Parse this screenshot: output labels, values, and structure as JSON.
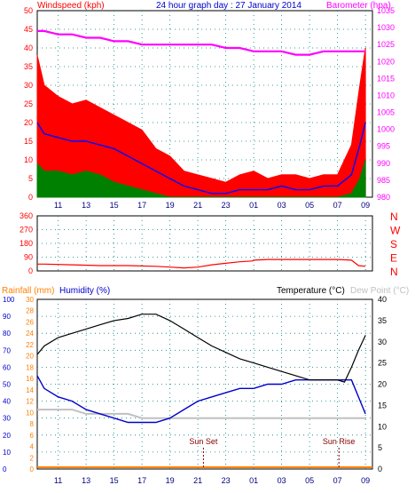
{
  "header": {
    "left_title": "Windspeed (kph)",
    "center_title": "24 hour graph day : 27 January 2014",
    "right_title": "Barometer (hpa)"
  },
  "colors": {
    "wind_gust": "#ff0000",
    "wind_avg": "#0000ff",
    "wind_low": "#008000",
    "barometer": "#ff00ff",
    "direction": "#ff0000",
    "temperature": "#000000",
    "humidity": "#0000cc",
    "dewpoint": "#c0c0c0",
    "rainfall": "#ff8000",
    "sun_marker": "#800000",
    "axis_right": "#008080",
    "grid": "#008080"
  },
  "chart_data": [
    {
      "type": "line",
      "title": "24 hour graph day : 27 January 2014",
      "ylabel": "Windspeed (kph)",
      "y2label": "Barometer (hpa)",
      "ylim": [
        0,
        50
      ],
      "y2lim": [
        980,
        1035
      ],
      "y_ticks": [
        "0",
        "5",
        "10",
        "15",
        "20",
        "25",
        "30",
        "35",
        "40",
        "45",
        "50"
      ],
      "y2_ticks": [
        "980",
        "985",
        "990",
        "995",
        "1000",
        "1005",
        "1010",
        "1015",
        "1020",
        "1025",
        "1030",
        "1035"
      ],
      "x_ticks": [
        "11",
        "13",
        "15",
        "17",
        "19",
        "21",
        "23",
        "01",
        "03",
        "05",
        "07",
        "09"
      ],
      "series": [
        {
          "name": "gust",
          "x": [
            9.5,
            10,
            11,
            12,
            13,
            14,
            15,
            16,
            17,
            18,
            19,
            20,
            21,
            22,
            23,
            24,
            25,
            26,
            27,
            28,
            29,
            30,
            31,
            32,
            32.6,
            33
          ],
          "y": [
            38,
            30,
            27,
            25,
            26,
            24,
            22,
            20,
            18,
            13,
            11,
            7,
            6,
            5,
            4,
            6,
            7,
            5,
            6,
            6,
            5,
            6,
            6,
            14,
            30,
            40
          ]
        },
        {
          "name": "average",
          "x": [
            9.5,
            10,
            11,
            12,
            13,
            14,
            15,
            16,
            17,
            18,
            19,
            20,
            21,
            22,
            23,
            24,
            25,
            26,
            27,
            28,
            29,
            30,
            31,
            32,
            32.6,
            33
          ],
          "y": [
            20,
            17,
            16,
            15,
            15,
            14,
            13,
            11,
            9,
            7,
            5,
            3,
            2,
            1,
            1,
            2,
            2,
            2,
            3,
            2,
            2,
            3,
            3,
            6,
            14,
            20
          ]
        },
        {
          "name": "low",
          "x": [
            9.5,
            10,
            11,
            12,
            13,
            14,
            15,
            16,
            17,
            18,
            19,
            20,
            21,
            22,
            23,
            24,
            25,
            26,
            27,
            28,
            29,
            30,
            31,
            32,
            32.6,
            33
          ],
          "y": [
            9,
            7,
            7,
            6,
            7,
            6,
            4,
            3,
            2,
            1,
            0,
            0,
            0,
            0,
            0,
            0,
            0,
            0,
            0,
            0,
            0,
            0,
            0,
            1,
            5,
            10
          ]
        },
        {
          "name": "barometer",
          "x": [
            9.5,
            10,
            11,
            12,
            13,
            14,
            15,
            16,
            17,
            18,
            19,
            20,
            21,
            22,
            23,
            24,
            25,
            26,
            27,
            28,
            29,
            30,
            31,
            32,
            32.6,
            33
          ],
          "y": [
            1029,
            1029,
            1028,
            1028,
            1027,
            1027,
            1026,
            1026,
            1025,
            1025,
            1025,
            1025,
            1025,
            1025,
            1024,
            1024,
            1023,
            1023,
            1023,
            1022,
            1022,
            1023,
            1023,
            1023,
            1023,
            1023
          ]
        }
      ]
    },
    {
      "type": "line",
      "ylabel": "Wind direction",
      "ylim": [
        0,
        360
      ],
      "y_ticks": [
        "0",
        "90",
        "180",
        "270",
        "360"
      ],
      "compass_labels": [
        "N",
        "W",
        "S",
        "E",
        "N"
      ],
      "series": [
        {
          "name": "direction",
          "x": [
            9.5,
            10,
            12,
            14,
            16,
            18,
            19,
            20,
            21,
            22,
            23,
            24,
            24.9,
            25,
            26,
            27,
            28,
            29,
            30,
            31,
            32,
            32.5,
            33
          ],
          "y": [
            45,
            45,
            40,
            35,
            35,
            30,
            25,
            20,
            25,
            40,
            50,
            60,
            65,
            70,
            75,
            75,
            75,
            75,
            75,
            75,
            70,
            35,
            30
          ]
        }
      ]
    },
    {
      "type": "line",
      "ylabel": "Rainfall (mm)",
      "y2label": "Humidity (%)",
      "y3label": "Temperature (°C)",
      "y4label": "Dew Point (°C)",
      "ylim": [
        0,
        100
      ],
      "rain_ticks": [
        "0",
        "2",
        "4",
        "6",
        "8",
        "10",
        "12",
        "14",
        "16",
        "18",
        "20",
        "22",
        "24",
        "26",
        "28",
        "30"
      ],
      "humidity_ticks": [
        "0",
        "10",
        "20",
        "30",
        "40",
        "50",
        "60",
        "70",
        "80",
        "90",
        "100"
      ],
      "temp_ticks": [
        "0",
        "5",
        "10",
        "15",
        "20",
        "25",
        "30",
        "35",
        "40"
      ],
      "templim": [
        0,
        40
      ],
      "annotations": [
        {
          "label": "Sun Set",
          "x": 21.4
        },
        {
          "label": "Sun Rise",
          "x": 31.1
        }
      ],
      "series": [
        {
          "name": "temperature",
          "x": [
            9.5,
            10,
            11,
            12,
            13,
            14,
            15,
            16,
            17,
            18,
            19,
            20,
            21,
            22,
            23,
            24,
            25,
            26,
            27,
            28,
            29,
            30,
            31,
            31.5,
            32,
            32.5,
            33
          ],
          "y": [
            27,
            29,
            31,
            32,
            33,
            34,
            35,
            35.5,
            36.5,
            36.5,
            35,
            33,
            31,
            29,
            27.5,
            26,
            25,
            24,
            23,
            22,
            21,
            21,
            21,
            20.5,
            24,
            28,
            31.5
          ]
        },
        {
          "name": "humidity",
          "x": [
            9.5,
            10,
            11,
            12,
            13,
            14,
            15,
            16,
            17,
            18,
            19,
            20,
            21,
            22,
            23,
            24,
            25,
            26,
            27,
            28,
            29,
            30,
            31,
            32,
            33
          ],
          "y": [
            22,
            19,
            17,
            16,
            14,
            13,
            12,
            11,
            11,
            11,
            12,
            14,
            16,
            17,
            18,
            19,
            19,
            20,
            20,
            21,
            21,
            21,
            21,
            21,
            13
          ]
        },
        {
          "name": "dewpoint",
          "x": [
            9.5,
            10,
            11,
            12,
            13,
            14,
            15,
            16,
            17,
            18,
            19,
            20,
            21,
            22,
            23,
            24,
            25,
            26,
            27,
            28,
            29,
            30,
            31,
            32,
            33
          ],
          "y": [
            14,
            14,
            14,
            14,
            13,
            13,
            13,
            13,
            12,
            12,
            12,
            12,
            12,
            12,
            12,
            12,
            12,
            12,
            12,
            12,
            12,
            12,
            12,
            12,
            12
          ]
        },
        {
          "name": "rainfall",
          "x": [
            9.5,
            33
          ],
          "y": [
            0,
            0
          ]
        }
      ]
    }
  ],
  "panel3_labels": {
    "rain": "Rainfall (mm)",
    "humidity": "Humidity (%)",
    "temperature": "Temperature (°C)",
    "dewpoint": "Dew Point (°C)",
    "sunset": "Sun Set",
    "sunrise": "Sun Rise"
  }
}
